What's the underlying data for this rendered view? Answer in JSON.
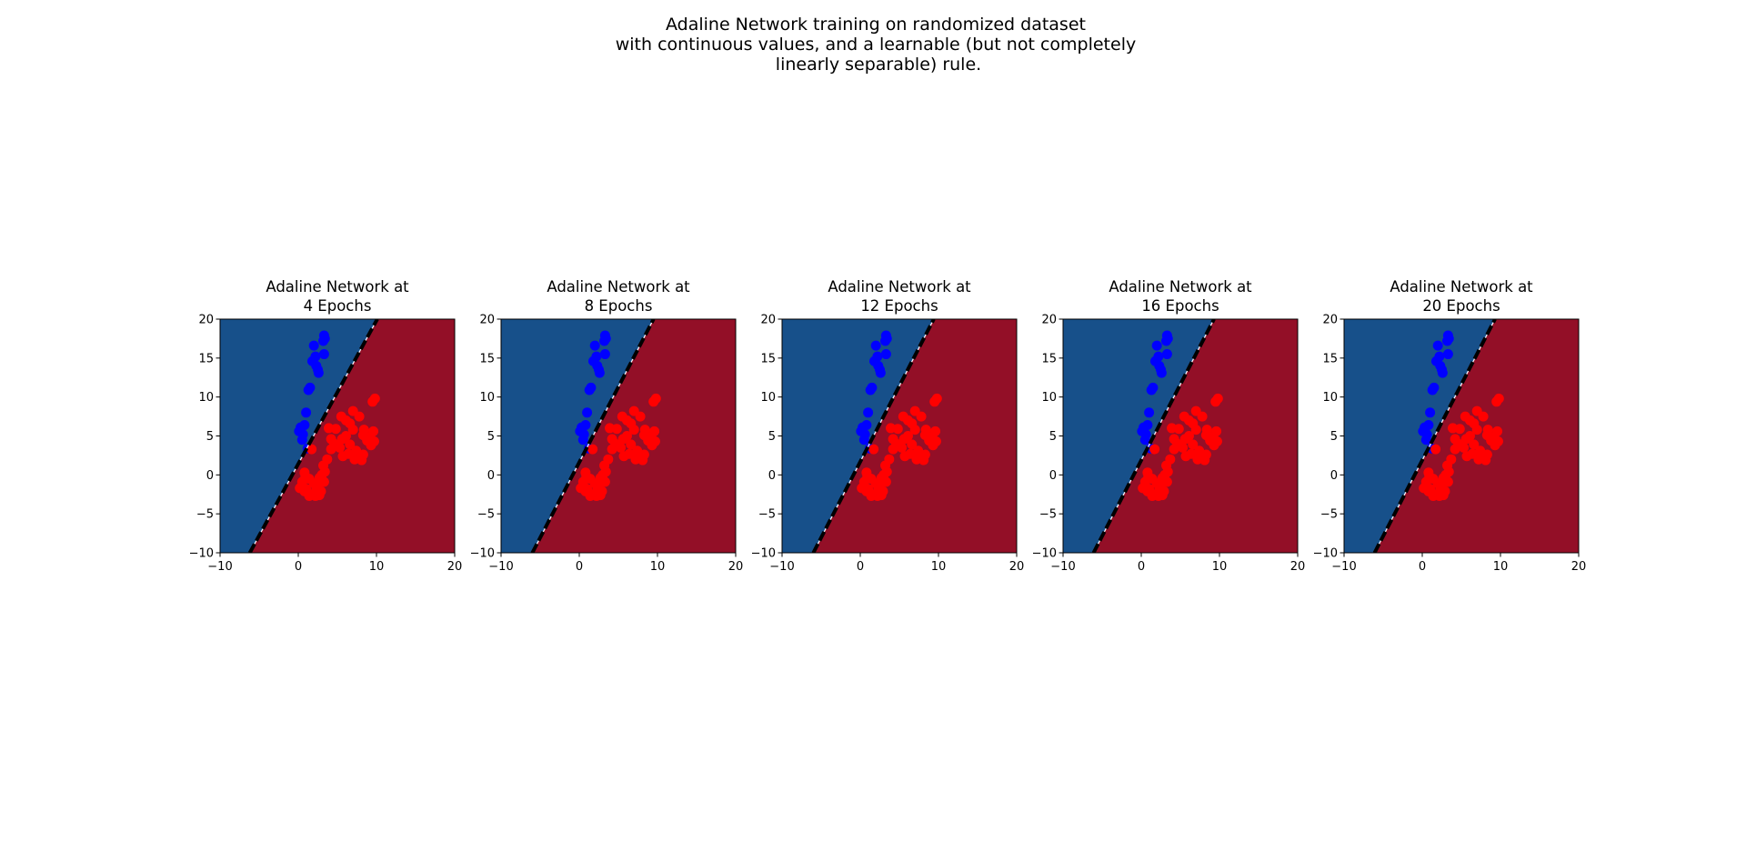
{
  "figure": {
    "suptitle_lines": [
      "Adaline Network training on randomized dataset",
      "with continuous values, and a learnable (but not completely",
      "linearly separable) rule."
    ]
  },
  "colors": {
    "region_negative": "#17508a",
    "region_positive": "#930f27",
    "class_negative_points": "#0000ff",
    "class_positive_points": "#ff0000",
    "boundary_line": "#000000",
    "boundary_dash_highlight": "#ffffff"
  },
  "chart_data": [
    {
      "type": "scatter",
      "title_lines": [
        "Adaline Network at",
        "4 Epochs"
      ],
      "xlim": [
        -10,
        20
      ],
      "ylim": [
        -10,
        20
      ],
      "xticks": [
        -10,
        0,
        10,
        20
      ],
      "yticks": [
        -10,
        -5,
        0,
        5,
        10,
        15,
        20
      ],
      "boundary": {
        "points": [
          [
            -6.2,
            -10
          ],
          [
            10.1,
            20
          ]
        ]
      }
    },
    {
      "type": "scatter",
      "title_lines": [
        "Adaline Network at",
        "8 Epochs"
      ],
      "xlim": [
        -10,
        20
      ],
      "ylim": [
        -10,
        20
      ],
      "xticks": [
        -10,
        0,
        10,
        20
      ],
      "yticks": [
        -10,
        -5,
        0,
        5,
        10,
        15,
        20
      ],
      "boundary": {
        "points": [
          [
            -6.0,
            -10
          ],
          [
            9.5,
            20
          ]
        ]
      }
    },
    {
      "type": "scatter",
      "title_lines": [
        "Adaline Network at",
        "12 Epochs"
      ],
      "xlim": [
        -10,
        20
      ],
      "ylim": [
        -10,
        20
      ],
      "xticks": [
        -10,
        0,
        10,
        20
      ],
      "yticks": [
        -10,
        -5,
        0,
        5,
        10,
        15,
        20
      ],
      "boundary": {
        "points": [
          [
            -6.0,
            -10
          ],
          [
            9.4,
            20
          ]
        ]
      }
    },
    {
      "type": "scatter",
      "title_lines": [
        "Adaline Network at",
        "16 Epochs"
      ],
      "xlim": [
        -10,
        20
      ],
      "ylim": [
        -10,
        20
      ],
      "xticks": [
        -10,
        0,
        10,
        20
      ],
      "yticks": [
        -10,
        -5,
        0,
        5,
        10,
        15,
        20
      ],
      "boundary": {
        "points": [
          [
            -6.1,
            -10
          ],
          [
            9.3,
            20
          ]
        ]
      }
    },
    {
      "type": "scatter",
      "title_lines": [
        "Adaline Network at",
        "20 Epochs"
      ],
      "xlim": [
        -10,
        20
      ],
      "ylim": [
        -10,
        20
      ],
      "xticks": [
        -10,
        0,
        10,
        20
      ],
      "yticks": [
        -10,
        -5,
        0,
        5,
        10,
        15,
        20
      ],
      "boundary": {
        "points": [
          [
            -6.1,
            -10
          ],
          [
            9.3,
            20
          ]
        ]
      }
    }
  ],
  "scatter_points": {
    "class_negative": [
      [
        3.3,
        17.9
      ],
      [
        3.4,
        17.5
      ],
      [
        3.2,
        17.2
      ],
      [
        2.0,
        16.6
      ],
      [
        3.3,
        15.5
      ],
      [
        2.2,
        15.2
      ],
      [
        1.8,
        14.6
      ],
      [
        2.3,
        14.0
      ],
      [
        2.5,
        13.5
      ],
      [
        2.6,
        13.1
      ],
      [
        1.5,
        11.2
      ],
      [
        1.3,
        10.9
      ],
      [
        1.0,
        8.0
      ],
      [
        0.8,
        6.4
      ],
      [
        0.3,
        6.1
      ],
      [
        0.1,
        5.6
      ],
      [
        0.6,
        5.2
      ],
      [
        0.5,
        4.5
      ],
      [
        1.2,
        3.4
      ]
    ],
    "class_positive": [
      [
        9.8,
        9.8
      ],
      [
        9.5,
        9.4
      ],
      [
        7.0,
        8.2
      ],
      [
        5.5,
        7.5
      ],
      [
        7.8,
        7.5
      ],
      [
        6.1,
        7.0
      ],
      [
        6.6,
        6.6
      ],
      [
        3.9,
        6.0
      ],
      [
        4.8,
        5.9
      ],
      [
        7.0,
        5.8
      ],
      [
        8.4,
        5.8
      ],
      [
        9.6,
        5.6
      ],
      [
        8.3,
        5.1
      ],
      [
        6.1,
        5.0
      ],
      [
        9.2,
        4.9
      ],
      [
        4.2,
        4.6
      ],
      [
        5.6,
        4.6
      ],
      [
        8.8,
        4.4
      ],
      [
        9.7,
        4.3
      ],
      [
        4.6,
        4.0
      ],
      [
        6.6,
        3.9
      ],
      [
        9.3,
        3.8
      ],
      [
        5.3,
        3.5
      ],
      [
        4.2,
        3.3
      ],
      [
        1.7,
        3.3
      ],
      [
        7.4,
        3.1
      ],
      [
        6.4,
        2.7
      ],
      [
        8.3,
        2.6
      ],
      [
        5.7,
        2.4
      ],
      [
        7.5,
        2.4
      ],
      [
        3.7,
        2.0
      ],
      [
        7.2,
        2.0
      ],
      [
        8.1,
        1.9
      ],
      [
        3.2,
        1.2
      ],
      [
        3.4,
        0.4
      ],
      [
        0.8,
        0.3
      ],
      [
        3.0,
        0.0
      ],
      [
        0.9,
        -0.2
      ],
      [
        2.7,
        -0.4
      ],
      [
        1.4,
        -0.5
      ],
      [
        0.5,
        -0.9
      ],
      [
        3.3,
        -0.9
      ],
      [
        2.0,
        -1.1
      ],
      [
        2.5,
        -1.3
      ],
      [
        0.2,
        -1.7
      ],
      [
        1.0,
        -1.8
      ],
      [
        2.3,
        -1.8
      ],
      [
        0.8,
        -2.1
      ],
      [
        2.9,
        -2.1
      ],
      [
        1.8,
        -2.5
      ],
      [
        2.7,
        -2.6
      ],
      [
        1.4,
        -2.7
      ],
      [
        2.2,
        -2.7
      ]
    ]
  }
}
